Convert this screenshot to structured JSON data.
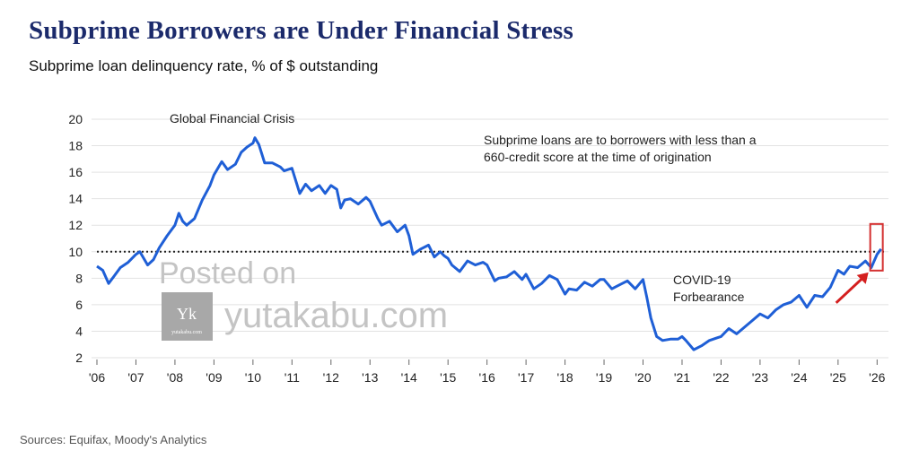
{
  "title": "Subprime Borrowers are Under Financial Stress",
  "subtitle": "Subprime loan delinquency rate, % of $ outstanding",
  "source": "Sources: Equifax, Moody's Analytics",
  "watermark": {
    "line1": "Posted on",
    "line2": "yutakabu.com",
    "logo_letter": "Yk",
    "logo_caption": "yutakabu.com"
  },
  "chart_data": {
    "type": "line",
    "title": "Subprime Borrowers are Under Financial Stress",
    "subtitle": "Subprime loan delinquency rate, % of $ outstanding",
    "xlabel": "",
    "ylabel": "",
    "x_ticks": [
      "'06",
      "'07",
      "'08",
      "'09",
      "'10",
      "'11",
      "'12",
      "'13",
      "'14",
      "'15",
      "'16",
      "'17",
      "'18",
      "'19",
      "'20",
      "'21",
      "'22",
      "'23",
      "'24",
      "'25",
      "'26"
    ],
    "y_ticks": [
      2,
      4,
      6,
      8,
      10,
      12,
      14,
      16,
      18,
      20
    ],
    "xlim": [
      2006,
      2026.2
    ],
    "ylim": [
      2,
      20
    ],
    "grid": "horizontal",
    "line_color": "#1f5fd6",
    "reference_line": {
      "y": 10,
      "style": "dotted",
      "color": "#222222"
    },
    "highlight_box_color": "#d43030",
    "arrow_color": "#d41f1f",
    "annotations": [
      {
        "text": "Global Financial Crisis"
      },
      {
        "text": "Subprime loans are to borrowers with less than a"
      },
      {
        "text": "660-credit score at the time of origination"
      },
      {
        "text": "COVID-19"
      },
      {
        "text": "Forbearance"
      }
    ],
    "series": [
      {
        "x": [
          2006.0,
          2006.15,
          2006.3,
          2006.45,
          2006.6,
          2006.8,
          2007.0,
          2007.1,
          2007.3,
          2007.45,
          2007.6,
          2007.8,
          2008.0,
          2008.1,
          2008.2,
          2008.3,
          2008.5,
          2008.7,
          2008.9,
          2009.0,
          2009.2,
          2009.35,
          2009.55,
          2009.7,
          2009.85,
          2010.0,
          2010.05,
          2010.15,
          2010.3,
          2010.5,
          2010.7,
          2010.8,
          2011.0,
          2011.2,
          2011.35,
          2011.5,
          2011.7,
          2011.85,
          2012.0,
          2012.15,
          2012.25,
          2012.35,
          2012.5,
          2012.7,
          2012.9,
          2013.0,
          2013.2,
          2013.3,
          2013.5,
          2013.7,
          2013.9,
          2014.0,
          2014.1,
          2014.3,
          2014.5,
          2014.65,
          2014.8,
          2014.9,
          2015.0,
          2015.1,
          2015.3,
          2015.5,
          2015.7,
          2015.9,
          2016.0,
          2016.2,
          2016.3,
          2016.5,
          2016.7,
          2016.9,
          2017.0,
          2017.2,
          2017.4,
          2017.6,
          2017.8,
          2018.0,
          2018.1,
          2018.3,
          2018.5,
          2018.7,
          2018.9,
          2019.0,
          2019.2,
          2019.4,
          2019.6,
          2019.8,
          2020.0,
          2020.1,
          2020.2,
          2020.35,
          2020.5,
          2020.7,
          2020.9,
          2021.0,
          2021.1,
          2021.3,
          2021.5,
          2021.7,
          2021.9,
          2022.0,
          2022.2,
          2022.4,
          2022.6,
          2022.8,
          2023.0,
          2023.2,
          2023.4,
          2023.6,
          2023.8,
          2024.0,
          2024.2,
          2024.4,
          2024.6,
          2024.8,
          2025.0,
          2025.15,
          2025.3,
          2025.5,
          2025.7,
          2025.85,
          2026.0,
          2026.1
        ],
        "y": [
          8.9,
          8.6,
          7.6,
          8.2,
          8.8,
          9.2,
          9.8,
          10.0,
          9.0,
          9.4,
          10.3,
          11.2,
          12.0,
          12.9,
          12.3,
          12.0,
          12.5,
          13.9,
          15.0,
          15.8,
          16.8,
          16.2,
          16.6,
          17.5,
          17.9,
          18.2,
          18.6,
          18.1,
          16.7,
          16.7,
          16.4,
          16.1,
          16.3,
          14.4,
          15.1,
          14.6,
          15.0,
          14.4,
          15.0,
          14.7,
          13.3,
          13.9,
          14.0,
          13.6,
          14.1,
          13.8,
          12.5,
          12.0,
          12.3,
          11.5,
          12.0,
          11.2,
          9.8,
          10.2,
          10.5,
          9.6,
          10.0,
          9.7,
          9.5,
          9.0,
          8.5,
          9.3,
          9.0,
          9.2,
          9.0,
          7.8,
          8.0,
          8.1,
          8.5,
          7.9,
          8.3,
          7.2,
          7.6,
          8.2,
          7.9,
          6.8,
          7.2,
          7.1,
          7.7,
          7.4,
          7.9,
          7.9,
          7.2,
          7.5,
          7.8,
          7.2,
          7.9,
          6.5,
          5.0,
          3.6,
          3.3,
          3.4,
          3.4,
          3.6,
          3.3,
          2.6,
          2.9,
          3.3,
          3.5,
          3.6,
          4.2,
          3.8,
          4.3,
          4.8,
          5.3,
          5.0,
          5.6,
          6.0,
          6.2,
          6.7,
          5.8,
          6.7,
          6.6,
          7.3,
          8.6,
          8.3,
          8.9,
          8.8,
          9.3,
          8.8,
          9.8,
          10.2
        ]
      }
    ]
  }
}
